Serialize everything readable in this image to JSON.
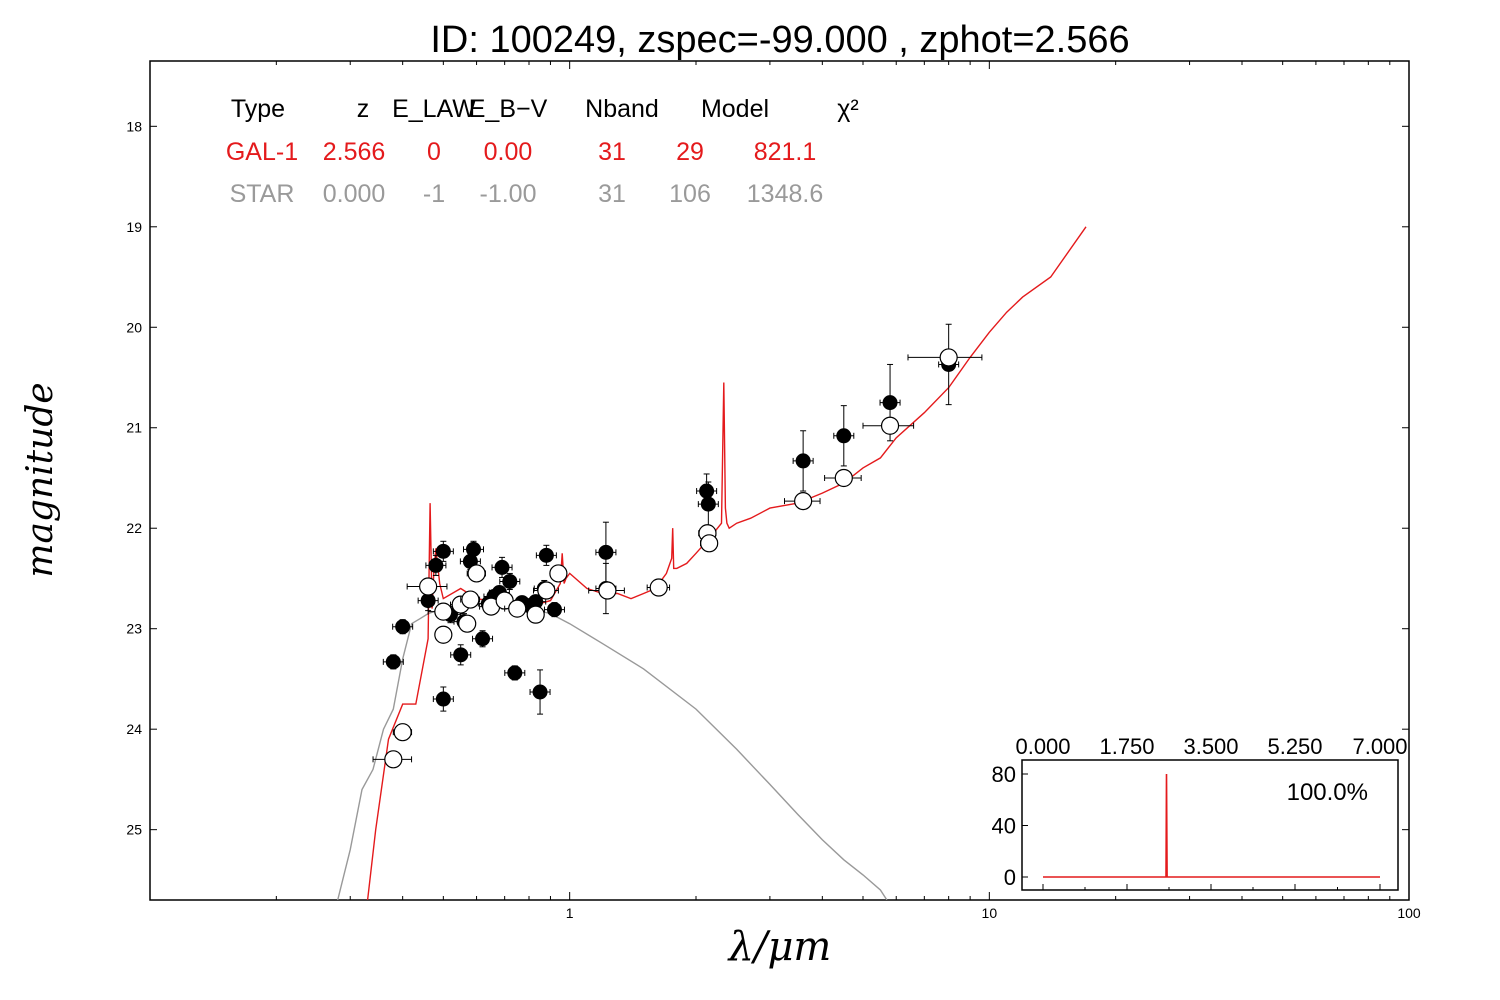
{
  "chart_data": {
    "type": "scatter",
    "title": "ID:  100249, zspec=-99.000 , zphot=2.566",
    "xlabel": "λ/μm",
    "ylabel": "magnitude",
    "xscale": "log",
    "xlim": [
      0.1,
      100
    ],
    "ylim": [
      25.7,
      17.35
    ],
    "y_inverted": true,
    "x_tick_labels": [
      "1",
      "10",
      "100"
    ],
    "y_ticks": [
      18,
      19,
      20,
      21,
      22,
      23,
      24,
      25
    ],
    "colors": {
      "galaxy": "#e41a1c",
      "star": "#999999",
      "points": "#000000",
      "axes": "#000000"
    },
    "fit_table": {
      "headers": [
        "Type",
        "z",
        "E_LAW",
        "E_B−V",
        "Nband",
        "Model",
        "χ²"
      ],
      "rows": [
        {
          "color": "#e41a1c",
          "cells": [
            "GAL-1",
            "2.566",
            "0",
            "0.00",
            "31",
            "29",
            "821.1"
          ]
        },
        {
          "color": "#9a9a9a",
          "cells": [
            "STAR",
            "0.000",
            "-1",
            "-1.00",
            "31",
            "106",
            "1348.6"
          ]
        }
      ]
    },
    "series": [
      {
        "role": "galaxy-template",
        "style": "line",
        "color": "#e41a1c",
        "x": [
          0.33,
          0.345,
          0.37,
          0.4,
          0.43,
          0.46,
          0.465,
          0.47,
          0.475,
          0.48,
          0.49,
          0.5,
          0.55,
          0.6,
          0.7,
          0.8,
          0.9,
          0.95,
          0.96,
          0.97,
          0.98,
          1.0,
          1.1,
          1.2,
          1.3,
          1.4,
          1.5,
          1.6,
          1.7,
          1.75,
          1.76,
          1.77,
          1.8,
          1.9,
          2.0,
          2.1,
          2.2,
          2.3,
          2.33,
          2.35,
          2.37,
          2.4,
          2.5,
          2.7,
          3.0,
          3.5,
          4.0,
          4.5,
          5.0,
          5.5,
          6.0,
          7.0,
          8.0,
          9.0,
          10.0,
          11.0,
          12.0,
          14.0,
          17.0
        ],
        "y": [
          25.7,
          25.0,
          24.1,
          23.75,
          23.75,
          23.1,
          21.75,
          22.8,
          22.4,
          22.2,
          22.55,
          22.7,
          22.6,
          22.7,
          22.75,
          22.78,
          22.72,
          22.55,
          22.25,
          22.55,
          22.5,
          22.45,
          22.6,
          22.65,
          22.65,
          22.7,
          22.65,
          22.6,
          22.45,
          22.3,
          22.0,
          22.4,
          22.4,
          22.35,
          22.25,
          22.15,
          22.05,
          21.95,
          20.55,
          21.8,
          21.95,
          22.0,
          21.95,
          21.9,
          21.8,
          21.75,
          21.65,
          21.55,
          21.4,
          21.3,
          21.1,
          20.85,
          20.6,
          20.3,
          20.05,
          19.85,
          19.7,
          19.5,
          19.0
        ]
      },
      {
        "role": "star-template",
        "style": "line",
        "color": "#999999",
        "x": [
          0.28,
          0.3,
          0.32,
          0.34,
          0.36,
          0.38,
          0.4,
          0.42,
          0.44,
          0.46,
          0.5,
          0.55,
          0.6,
          0.7,
          0.8,
          0.9,
          1.0,
          1.2,
          1.5,
          2.0,
          2.5,
          3.0,
          3.5,
          4.0,
          4.5,
          5.0,
          5.5,
          5.7
        ],
        "y": [
          25.7,
          25.2,
          24.6,
          24.4,
          24.0,
          23.8,
          23.3,
          22.95,
          22.9,
          22.85,
          22.8,
          22.75,
          22.75,
          22.75,
          22.8,
          22.85,
          22.95,
          23.15,
          23.4,
          23.8,
          24.2,
          24.55,
          24.85,
          25.1,
          25.3,
          25.45,
          25.6,
          25.7
        ]
      },
      {
        "role": "observed",
        "style": "markers-filled",
        "color": "#000000",
        "points": [
          {
            "x": 0.38,
            "y": 23.33,
            "yerr": 0.07
          },
          {
            "x": 0.4,
            "y": 22.98,
            "yerr": 0.07
          },
          {
            "x": 0.46,
            "y": 22.72,
            "yerr": 0.1
          },
          {
            "x": 0.48,
            "y": 22.37,
            "yerr": 0.1
          },
          {
            "x": 0.5,
            "y": 22.23,
            "yerr": 0.1
          },
          {
            "x": 0.5,
            "y": 23.7,
            "yerr": 0.12
          },
          {
            "x": 0.52,
            "y": 22.86,
            "yerr": 0.08
          },
          {
            "x": 0.55,
            "y": 23.26,
            "yerr": 0.1
          },
          {
            "x": 0.56,
            "y": 22.93,
            "yerr": 0.08
          },
          {
            "x": 0.58,
            "y": 22.33,
            "yerr": 0.08
          },
          {
            "x": 0.59,
            "y": 22.21,
            "yerr": 0.08
          },
          {
            "x": 0.62,
            "y": 23.1,
            "yerr": 0.08
          },
          {
            "x": 0.64,
            "y": 22.75,
            "yerr": 0.06
          },
          {
            "x": 0.66,
            "y": 22.68,
            "yerr": 0.06
          },
          {
            "x": 0.68,
            "y": 22.64,
            "yerr": 0.06
          },
          {
            "x": 0.69,
            "y": 22.39,
            "yerr": 0.1
          },
          {
            "x": 0.72,
            "y": 22.53,
            "yerr": 0.08
          },
          {
            "x": 0.74,
            "y": 23.44,
            "yerr": 0.07
          },
          {
            "x": 0.77,
            "y": 22.74,
            "yerr": 0.05
          },
          {
            "x": 0.8,
            "y": 22.77,
            "yerr": 0.05
          },
          {
            "x": 0.83,
            "y": 22.73,
            "yerr": 0.05
          },
          {
            "x": 0.85,
            "y": 23.63,
            "yerr": 0.22
          },
          {
            "x": 0.87,
            "y": 22.6,
            "yerr": 0.08
          },
          {
            "x": 0.88,
            "y": 22.27,
            "yerr": 0.1
          },
          {
            "x": 0.92,
            "y": 22.81,
            "yerr": 0.07
          },
          {
            "x": 1.22,
            "y": 22.24,
            "yerr": 0.3
          },
          {
            "x": 1.22,
            "y": 22.6,
            "yerr": 0.25
          },
          {
            "x": 2.12,
            "y": 21.63,
            "yerr": 0.17
          },
          {
            "x": 2.14,
            "y": 21.76,
            "yerr": 0.22
          },
          {
            "x": 3.6,
            "y": 21.33,
            "yerr": 0.3
          },
          {
            "x": 4.5,
            "y": 21.08,
            "yerr": 0.3
          },
          {
            "x": 5.8,
            "y": 20.75,
            "yerr": 0.38
          },
          {
            "x": 8.0,
            "y": 20.37,
            "yerr": 0.4
          }
        ]
      },
      {
        "role": "template-prediction",
        "style": "markers-open",
        "color": "#000000",
        "points": [
          {
            "x": 0.38,
            "y": 24.3,
            "xerr": 0.04
          },
          {
            "x": 0.4,
            "y": 24.03,
            "xerr": 0.02
          },
          {
            "x": 0.46,
            "y": 22.58,
            "xerr": 0.05
          },
          {
            "x": 0.5,
            "y": 22.83,
            "xerr": 0.04
          },
          {
            "x": 0.5,
            "y": 23.06,
            "xerr": 0.02
          },
          {
            "x": 0.55,
            "y": 22.76,
            "xerr": 0.03
          },
          {
            "x": 0.57,
            "y": 22.95,
            "xerr": 0.02
          },
          {
            "x": 0.58,
            "y": 22.71,
            "xerr": 0.03
          },
          {
            "x": 0.6,
            "y": 22.45,
            "xerr": 0.03
          },
          {
            "x": 0.65,
            "y": 22.78,
            "xerr": 0.04
          },
          {
            "x": 0.7,
            "y": 22.72,
            "xerr": 0.03
          },
          {
            "x": 0.75,
            "y": 22.8,
            "xerr": 0.05
          },
          {
            "x": 0.83,
            "y": 22.86,
            "xerr": 0.03
          },
          {
            "x": 0.88,
            "y": 22.62,
            "xerr": 0.06
          },
          {
            "x": 0.94,
            "y": 22.45,
            "xerr": 0.03
          },
          {
            "x": 1.23,
            "y": 22.62,
            "xerr": 0.12
          },
          {
            "x": 1.63,
            "y": 22.59,
            "xerr": 0.1
          },
          {
            "x": 2.13,
            "y": 22.05,
            "xerr": 0.1
          },
          {
            "x": 2.15,
            "y": 22.15,
            "xerr": 0.1
          },
          {
            "x": 3.6,
            "y": 21.73,
            "xerr": 0.35
          },
          {
            "x": 4.5,
            "y": 21.5,
            "xerr": 0.45
          },
          {
            "x": 5.8,
            "y": 20.98,
            "xerr": 0.8
          },
          {
            "x": 8.0,
            "y": 20.3,
            "xerr": 1.6
          }
        ]
      }
    ],
    "inset": {
      "type": "line",
      "label": "100.0%",
      "xlim": [
        0,
        7
      ],
      "ylim": [
        -10,
        88
      ],
      "x_tick_labels": [
        "0.000",
        "1.750",
        "3.500",
        "5.250",
        "7.000"
      ],
      "y_tick_labels": [
        "80",
        "40",
        "0"
      ],
      "color": "#e41a1c",
      "x": [
        0.0,
        2.53,
        2.555,
        2.566,
        2.577,
        2.6,
        7.0
      ],
      "y": [
        0,
        0,
        0,
        80,
        0,
        0,
        0
      ]
    }
  }
}
